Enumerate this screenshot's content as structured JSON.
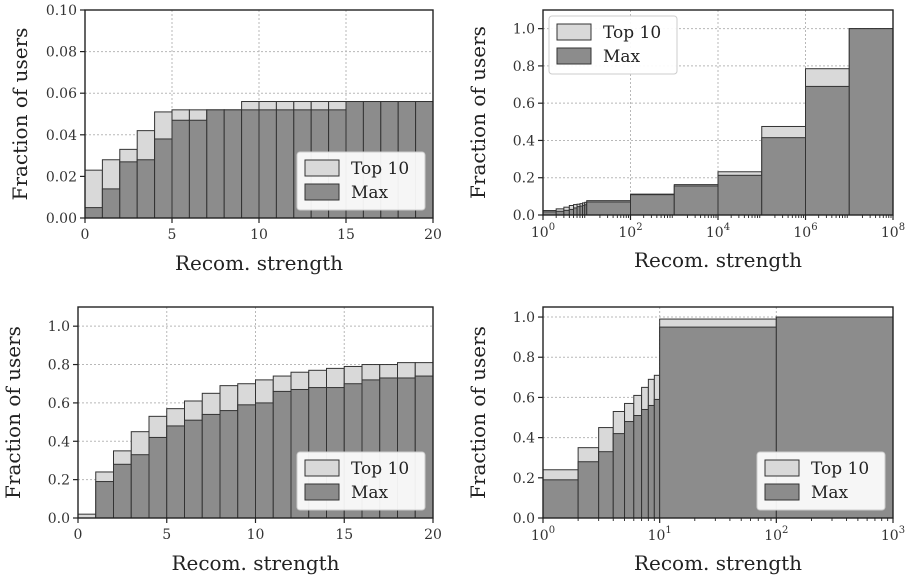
{
  "colors": {
    "top10": "#d9d9d9",
    "max": "#8c8c8c",
    "edge": "#333333"
  },
  "chart_data": [
    {
      "id": "p1",
      "type": "bar",
      "xscale": "linear",
      "xlim": [
        0,
        20
      ],
      "ylim": [
        0,
        0.1
      ],
      "xticks": [
        0,
        5,
        10,
        15,
        20
      ],
      "xtick_labels": [
        "0",
        "5",
        "10",
        "15",
        "20"
      ],
      "yticks": [
        0,
        0.02,
        0.04,
        0.06,
        0.08,
        0.1
      ],
      "ytick_labels": [
        "0.00",
        "0.02",
        "0.04",
        "0.06",
        "0.08",
        "0.10"
      ],
      "xlabel": "Recom. strength",
      "ylabel": "Fraction of users",
      "legend": {
        "position": "lower-right",
        "entries": [
          "Top 10",
          "Max"
        ]
      },
      "grid": true,
      "bin_edges": [
        0,
        1,
        2,
        3,
        4,
        5,
        6,
        7,
        8,
        9,
        10,
        11,
        12,
        13,
        14,
        15,
        16,
        17,
        18,
        19,
        20
      ],
      "series": [
        {
          "name": "Top 10",
          "values": [
            0.023,
            0.028,
            0.033,
            0.042,
            0.051,
            0.052,
            0.052,
            0.052,
            0.052,
            0.056,
            0.056,
            0.056,
            0.056,
            0.056,
            0.056,
            0.056,
            0.056,
            0.056,
            0.056,
            0.056
          ]
        },
        {
          "name": "Max",
          "values": [
            0.005,
            0.014,
            0.027,
            0.028,
            0.038,
            0.047,
            0.047,
            0.052,
            0.052,
            0.052,
            0.052,
            0.052,
            0.052,
            0.052,
            0.052,
            0.056,
            0.056,
            0.056,
            0.056,
            0.056
          ]
        }
      ]
    },
    {
      "id": "p2",
      "type": "bar",
      "xscale": "log",
      "xlim": [
        1,
        100000000
      ],
      "ylim": [
        0,
        1.1
      ],
      "xticks": [
        1,
        100,
        10000,
        1000000,
        100000000
      ],
      "xtick_labels": [
        {
          "base": "10",
          "exp": "0"
        },
        {
          "base": "10",
          "exp": "2"
        },
        {
          "base": "10",
          "exp": "4"
        },
        {
          "base": "10",
          "exp": "6"
        },
        {
          "base": "10",
          "exp": "8"
        }
      ],
      "yticks": [
        0,
        0.2,
        0.4,
        0.6,
        0.8,
        1.0
      ],
      "ytick_labels": [
        "0.0",
        "0.2",
        "0.4",
        "0.6",
        "0.8",
        "1.0"
      ],
      "xlabel": "Recom. strength",
      "ylabel": "Fraction of users",
      "legend": {
        "position": "upper-left",
        "entries": [
          "Top 10",
          "Max"
        ]
      },
      "grid": true,
      "bin_edges": [
        1,
        2,
        3,
        4,
        5,
        6,
        7,
        8,
        9,
        10,
        100,
        1000,
        10000,
        100000,
        1000000,
        10000000,
        100000000
      ],
      "series": [
        {
          "name": "Top 10",
          "values": [
            0.024,
            0.033,
            0.042,
            0.051,
            0.056,
            0.058,
            0.061,
            0.065,
            0.068,
            0.077,
            0.112,
            0.163,
            0.232,
            0.475,
            0.785,
            1.0
          ]
        },
        {
          "name": "Max",
          "values": [
            0.017,
            0.02,
            0.025,
            0.03,
            0.038,
            0.045,
            0.048,
            0.052,
            0.055,
            0.07,
            0.109,
            0.156,
            0.213,
            0.415,
            0.69,
            1.0
          ]
        }
      ]
    },
    {
      "id": "p3",
      "type": "bar",
      "xscale": "linear",
      "xlim": [
        0,
        20
      ],
      "ylim": [
        0,
        1.1
      ],
      "xticks": [
        0,
        5,
        10,
        15,
        20
      ],
      "xtick_labels": [
        "0",
        "5",
        "10",
        "15",
        "20"
      ],
      "yticks": [
        0,
        0.2,
        0.4,
        0.6,
        0.8,
        1.0
      ],
      "ytick_labels": [
        "0.0",
        "0.2",
        "0.4",
        "0.6",
        "0.8",
        "1.0"
      ],
      "xlabel": "Recom. strength",
      "ylabel": "Fraction of users",
      "legend": {
        "position": "lower-right",
        "entries": [
          "Top 10",
          "Max"
        ]
      },
      "grid": true,
      "bin_edges": [
        0,
        1,
        2,
        3,
        4,
        5,
        6,
        7,
        8,
        9,
        10,
        11,
        12,
        13,
        14,
        15,
        16,
        17,
        18,
        19,
        20
      ],
      "series": [
        {
          "name": "Top 10",
          "values": [
            0.02,
            0.24,
            0.35,
            0.45,
            0.53,
            0.57,
            0.61,
            0.65,
            0.69,
            0.7,
            0.72,
            0.74,
            0.76,
            0.77,
            0.78,
            0.79,
            0.8,
            0.8,
            0.81,
            0.81
          ]
        },
        {
          "name": "Max",
          "values": [
            0.0,
            0.19,
            0.28,
            0.33,
            0.42,
            0.48,
            0.51,
            0.54,
            0.56,
            0.59,
            0.6,
            0.66,
            0.67,
            0.68,
            0.68,
            0.7,
            0.72,
            0.73,
            0.73,
            0.74
          ]
        }
      ]
    },
    {
      "id": "p4",
      "type": "bar",
      "xscale": "log",
      "xlim": [
        1,
        1000
      ],
      "ylim": [
        0,
        1.05
      ],
      "xticks": [
        1,
        10,
        100,
        1000
      ],
      "xtick_labels": [
        {
          "base": "10",
          "exp": "0"
        },
        {
          "base": "10",
          "exp": "1"
        },
        {
          "base": "10",
          "exp": "2"
        },
        {
          "base": "10",
          "exp": "3"
        }
      ],
      "yticks": [
        0,
        0.2,
        0.4,
        0.6,
        0.8,
        1.0
      ],
      "ytick_labels": [
        "0.0",
        "0.2",
        "0.4",
        "0.6",
        "0.8",
        "1.0"
      ],
      "xlabel": "Recom. strength",
      "ylabel": "Fraction of users",
      "legend": {
        "position": "lower-right",
        "entries": [
          "Top 10",
          "Max"
        ]
      },
      "grid": true,
      "bin_edges": [
        1,
        2,
        3,
        4,
        5,
        6,
        7,
        8,
        9,
        10,
        100,
        1000
      ],
      "series": [
        {
          "name": "Top 10",
          "values": [
            0.24,
            0.35,
            0.45,
            0.53,
            0.57,
            0.61,
            0.65,
            0.69,
            0.71,
            0.99,
            1.0
          ]
        },
        {
          "name": "Max",
          "values": [
            0.19,
            0.28,
            0.33,
            0.42,
            0.48,
            0.51,
            0.54,
            0.56,
            0.59,
            0.95,
            1.0
          ]
        }
      ]
    }
  ]
}
